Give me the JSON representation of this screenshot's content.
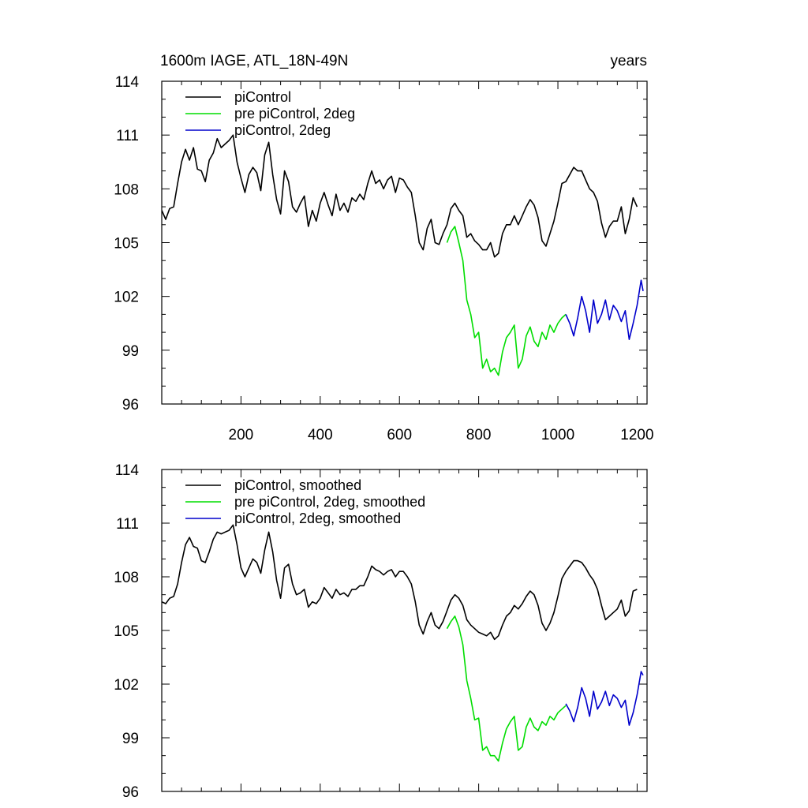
{
  "chart_data": [
    {
      "type": "line",
      "title": "1600m IAGE, ATL_18N-49N",
      "title_right": "years",
      "xlim": [
        0,
        1225
      ],
      "ylim": [
        96,
        114
      ],
      "x_ticks": [
        200,
        400,
        600,
        800,
        1000,
        1200
      ],
      "x_tick_labels": [
        "200",
        "400",
        "600",
        "800",
        "1000",
        "1200"
      ],
      "y_ticks": [
        96,
        99,
        102,
        105,
        108,
        111,
        114
      ],
      "y_tick_labels": [
        "96",
        "99",
        "102",
        "105",
        "108",
        "111",
        "114"
      ],
      "legend_position": "top-left",
      "series": [
        {
          "name": "piControl",
          "color": "#000000",
          "x": [
            0,
            10,
            20,
            30,
            40,
            50,
            60,
            70,
            80,
            90,
            100,
            110,
            120,
            130,
            140,
            150,
            160,
            170,
            180,
            190,
            200,
            210,
            220,
            230,
            240,
            250,
            260,
            270,
            280,
            290,
            300,
            310,
            320,
            330,
            340,
            350,
            360,
            370,
            380,
            390,
            400,
            410,
            420,
            430,
            440,
            450,
            460,
            470,
            480,
            490,
            500,
            510,
            520,
            530,
            540,
            550,
            560,
            570,
            580,
            590,
            600,
            610,
            620,
            630,
            640,
            650,
            660,
            670,
            680,
            690,
            700,
            710,
            720,
            730,
            740,
            750,
            760,
            770,
            780,
            790,
            800,
            810,
            820,
            830,
            840,
            850,
            860,
            870,
            880,
            890,
            900,
            910,
            920,
            930,
            940,
            950,
            960,
            970,
            980,
            990,
            1000,
            1010,
            1020,
            1030,
            1040,
            1050,
            1060,
            1070,
            1080,
            1090,
            1100,
            1110,
            1120,
            1130,
            1140,
            1150,
            1160,
            1170,
            1180,
            1190,
            1200
          ],
          "y": [
            106.8,
            106.3,
            106.9,
            107.0,
            108.3,
            109.5,
            110.2,
            109.6,
            110.3,
            109.1,
            109.0,
            108.4,
            109.6,
            110.0,
            110.8,
            110.3,
            110.5,
            110.7,
            111.0,
            109.5,
            108.6,
            107.8,
            108.8,
            109.2,
            108.9,
            107.9,
            109.9,
            110.6,
            108.8,
            107.4,
            106.6,
            109.0,
            108.4,
            107.0,
            106.7,
            107.2,
            107.6,
            105.9,
            106.8,
            106.2,
            107.2,
            107.8,
            107.1,
            106.5,
            107.7,
            106.8,
            107.2,
            106.7,
            107.5,
            107.3,
            107.7,
            107.4,
            108.3,
            109.0,
            108.3,
            108.5,
            108.0,
            108.5,
            108.7,
            107.8,
            108.6,
            108.5,
            108.1,
            107.8,
            106.5,
            105.0,
            104.6,
            105.8,
            106.3,
            105.0,
            104.9,
            105.5,
            106.0,
            106.9,
            107.2,
            106.8,
            106.5,
            105.3,
            105.5,
            105.1,
            104.9,
            104.6,
            104.6,
            105.0,
            104.2,
            104.4,
            105.5,
            106.0,
            106.0,
            106.5,
            106.0,
            106.5,
            107.0,
            107.4,
            107.1,
            106.4,
            105.1,
            104.8,
            105.5,
            106.2,
            107.2,
            108.3,
            108.4,
            108.8,
            109.2,
            109.0,
            109.0,
            108.5,
            108.0,
            107.8,
            107.3,
            106.1,
            105.3,
            105.9,
            106.2,
            106.2,
            107.0,
            105.5,
            106.3,
            107.5,
            107.0
          ]
        },
        {
          "name": "pre piControl, 2deg",
          "color": "#00dd00",
          "x": [
            720,
            730,
            740,
            750,
            760,
            770,
            780,
            790,
            800,
            810,
            820,
            830,
            840,
            850,
            860,
            870,
            880,
            890,
            900,
            910,
            920,
            930,
            940,
            950,
            960,
            970,
            980,
            990,
            1000,
            1010,
            1020
          ],
          "y": [
            105.0,
            105.6,
            105.9,
            105.0,
            104.0,
            101.8,
            101.0,
            99.7,
            100.0,
            98.0,
            98.5,
            97.8,
            98.0,
            97.6,
            98.9,
            99.7,
            100.0,
            100.4,
            98.0,
            98.5,
            99.8,
            100.3,
            99.5,
            99.2,
            100.0,
            99.6,
            100.4,
            100.0,
            100.5,
            100.8,
            101.0
          ]
        },
        {
          "name": "piControl, 2deg",
          "color": "#0000cc",
          "x": [
            1020,
            1030,
            1040,
            1050,
            1060,
            1070,
            1080,
            1090,
            1100,
            1110,
            1120,
            1130,
            1140,
            1150,
            1160,
            1170,
            1180,
            1190,
            1200,
            1210,
            1215
          ],
          "y": [
            101.0,
            100.5,
            99.8,
            100.8,
            102.0,
            101.2,
            100.0,
            101.8,
            100.5,
            101.0,
            101.8,
            100.7,
            101.5,
            101.2,
            100.6,
            101.2,
            99.6,
            100.5,
            101.5,
            102.9,
            102.3
          ]
        }
      ]
    },
    {
      "type": "line",
      "xlim": [
        0,
        1225
      ],
      "ylim": [
        96,
        114
      ],
      "x_ticks": [
        200,
        400,
        600,
        800,
        1000,
        1200
      ],
      "y_ticks": [
        96,
        99,
        102,
        105,
        108,
        111,
        114
      ],
      "y_tick_labels": [
        "96",
        "99",
        "102",
        "105",
        "108",
        "111",
        "114"
      ],
      "legend_position": "top-left",
      "series": [
        {
          "name": "piControl, smoothed",
          "color": "#000000",
          "x": [
            0,
            10,
            20,
            30,
            40,
            50,
            60,
            70,
            80,
            90,
            100,
            110,
            120,
            130,
            140,
            150,
            160,
            170,
            180,
            190,
            200,
            210,
            220,
            230,
            240,
            250,
            260,
            270,
            280,
            290,
            300,
            310,
            320,
            330,
            340,
            350,
            360,
            370,
            380,
            390,
            400,
            410,
            420,
            430,
            440,
            450,
            460,
            470,
            480,
            490,
            500,
            510,
            520,
            530,
            540,
            550,
            560,
            570,
            580,
            590,
            600,
            610,
            620,
            630,
            640,
            650,
            660,
            670,
            680,
            690,
            700,
            710,
            720,
            730,
            740,
            750,
            760,
            770,
            780,
            790,
            800,
            810,
            820,
            830,
            840,
            850,
            860,
            870,
            880,
            890,
            900,
            910,
            920,
            930,
            940,
            950,
            960,
            970,
            980,
            990,
            1000,
            1010,
            1020,
            1030,
            1040,
            1050,
            1060,
            1070,
            1080,
            1090,
            1100,
            1110,
            1120,
            1130,
            1140,
            1150,
            1160,
            1170,
            1180,
            1190,
            1200
          ],
          "y": [
            106.6,
            106.5,
            106.8,
            106.9,
            107.6,
            108.8,
            109.8,
            110.2,
            109.7,
            109.6,
            108.9,
            108.8,
            109.4,
            110.1,
            110.5,
            110.4,
            110.5,
            110.6,
            110.9,
            109.8,
            108.5,
            108.0,
            108.5,
            109.0,
            108.8,
            108.2,
            109.5,
            110.5,
            109.4,
            107.8,
            106.8,
            108.5,
            108.7,
            107.6,
            107.0,
            107.1,
            107.3,
            106.3,
            106.6,
            106.5,
            106.8,
            107.4,
            107.1,
            106.8,
            107.3,
            107.0,
            107.1,
            106.9,
            107.3,
            107.3,
            107.5,
            107.5,
            108.0,
            108.6,
            108.4,
            108.3,
            108.1,
            108.3,
            108.4,
            108.0,
            108.3,
            108.3,
            108.0,
            107.6,
            106.6,
            105.3,
            104.8,
            105.5,
            106.0,
            105.3,
            105.1,
            105.5,
            106.1,
            106.7,
            107.0,
            106.8,
            106.4,
            105.6,
            105.3,
            105.1,
            104.9,
            104.8,
            104.7,
            104.9,
            104.5,
            104.7,
            105.3,
            105.8,
            106.0,
            106.4,
            106.2,
            106.5,
            106.9,
            107.2,
            107.0,
            106.4,
            105.4,
            105.0,
            105.4,
            106.0,
            106.9,
            107.9,
            108.3,
            108.6,
            108.9,
            108.9,
            108.8,
            108.5,
            108.1,
            107.8,
            107.3,
            106.4,
            105.6,
            105.8,
            106.0,
            106.2,
            106.7,
            105.8,
            106.1,
            107.2,
            107.3
          ]
        },
        {
          "name": "pre piControl, 2deg, smoothed",
          "color": "#00dd00",
          "x": [
            720,
            730,
            740,
            750,
            760,
            770,
            780,
            790,
            800,
            810,
            820,
            830,
            840,
            850,
            860,
            870,
            880,
            890,
            900,
            910,
            920,
            930,
            940,
            950,
            960,
            970,
            980,
            990,
            1000,
            1010,
            1020
          ],
          "y": [
            105.1,
            105.5,
            105.8,
            105.2,
            104.2,
            102.2,
            101.2,
            100.0,
            100.1,
            98.3,
            98.5,
            98.0,
            98.0,
            97.7,
            98.7,
            99.5,
            99.9,
            100.2,
            98.3,
            98.5,
            99.6,
            100.1,
            99.6,
            99.4,
            99.9,
            99.7,
            100.2,
            100.0,
            100.4,
            100.6,
            100.8
          ]
        },
        {
          "name": "piControl, 2deg, smoothed",
          "color": "#0000cc",
          "x": [
            1020,
            1030,
            1040,
            1050,
            1060,
            1070,
            1080,
            1090,
            1100,
            1110,
            1120,
            1130,
            1140,
            1150,
            1160,
            1170,
            1180,
            1190,
            1200,
            1210,
            1215
          ],
          "y": [
            100.9,
            100.5,
            99.9,
            100.7,
            101.8,
            101.2,
            100.2,
            101.6,
            100.6,
            101.0,
            101.6,
            100.8,
            101.4,
            101.2,
            100.7,
            101.1,
            99.7,
            100.4,
            101.4,
            102.7,
            102.5
          ]
        }
      ]
    }
  ]
}
